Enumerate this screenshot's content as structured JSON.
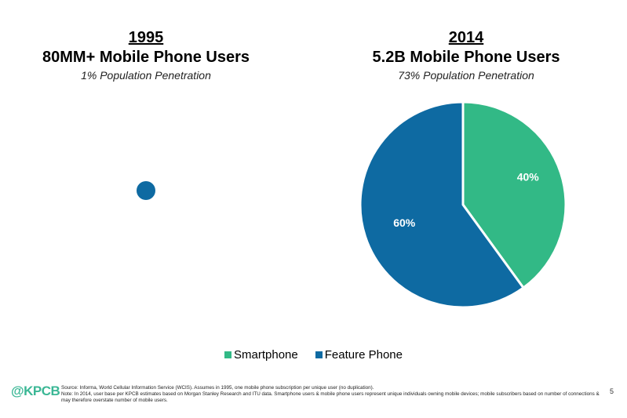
{
  "left_panel": {
    "year": "1995",
    "headline": "80MM+ Mobile Phone Users",
    "subtitle": "1% Population Penetration"
  },
  "right_panel": {
    "year": "2014",
    "headline": "5.2B Mobile Phone Users",
    "subtitle": "73% Population Penetration"
  },
  "chart_data": [
    {
      "type": "pie",
      "categories": [
        "Feature Phone"
      ],
      "values": [
        100
      ],
      "colors": [
        "#0e6aa2"
      ]
    },
    {
      "type": "pie",
      "categories": [
        "Smartphone",
        "Feature Phone"
      ],
      "values": [
        40,
        60
      ],
      "data_labels": [
        "40%",
        "60%"
      ],
      "colors": [
        "#32b986",
        "#0e6aa2"
      ]
    }
  ],
  "legend": {
    "placement": "bottom-center",
    "items": [
      {
        "label": "Smartphone",
        "color": "#32b986"
      },
      {
        "label": "Feature Phone",
        "color": "#0e6aa2"
      }
    ]
  },
  "footer": {
    "logo": "@KPCB",
    "source": "Source: Informa, World Cellular Information Service (WCIS). Assumes in 1995, one mobile phone subscription per unique user (no duplication).",
    "note": "Note: In 2014, user base per KPCB estimates based on Morgan Stanley Research and ITU data. Smartphone users & mobile phone users represent unique individuals owning mobile devices; mobile subscribers based on number of connections & may therefore overstate number of mobile users.",
    "page_number": "5"
  }
}
